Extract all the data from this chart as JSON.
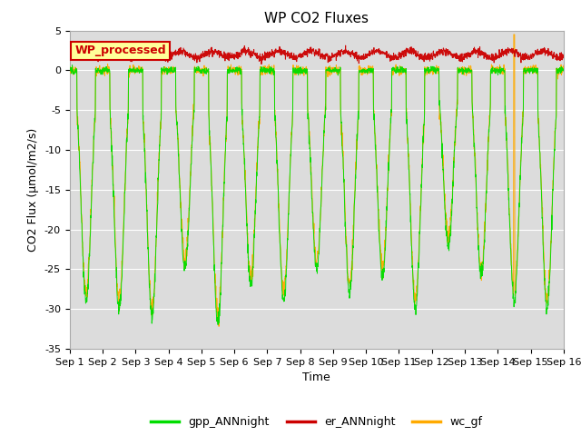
{
  "title": "WP CO2 Fluxes",
  "xlabel": "Time",
  "ylabel": "CO2 Flux (μmol/m2/s)",
  "ylim": [
    -35,
    5
  ],
  "xlim": [
    0,
    15
  ],
  "xtick_positions": [
    0,
    1,
    2,
    3,
    4,
    5,
    6,
    7,
    8,
    9,
    10,
    11,
    12,
    13,
    14,
    15
  ],
  "xtick_labels": [
    "Sep 1",
    "Sep 2",
    "Sep 3",
    "Sep 4",
    "Sep 5",
    "Sep 6",
    "Sep 7",
    "Sep 8",
    "Sep 9",
    "Sep 10",
    "Sep 11",
    "Sep 12",
    "Sep 13",
    "Sep 14",
    "Sep 15",
    "Sep 16"
  ],
  "ytick_values": [
    5,
    0,
    -5,
    -10,
    -15,
    -20,
    -25,
    -30,
    -35
  ],
  "gpp_color": "#00dd00",
  "er_color": "#cc0000",
  "wc_color": "#ffaa00",
  "bg_color": "#dcdcdc",
  "legend_labels": [
    "gpp_ANNnight",
    "er_ANNnight",
    "wc_gf"
  ],
  "annotation_text": "WP_processed",
  "annotation_bg": "#ffff99",
  "annotation_edge": "#cc0000",
  "title_fontsize": 11,
  "axis_label_fontsize": 9,
  "tick_fontsize": 8,
  "day_amplitudes_gpp": [
    29,
    30,
    31,
    25,
    32,
    27,
    29,
    25,
    28,
    26,
    30,
    22,
    26,
    29,
    30
  ],
  "day_amplitudes_wc": [
    28,
    29,
    30,
    24,
    31,
    26,
    28,
    24,
    27,
    25,
    29,
    21,
    25,
    28,
    29
  ]
}
